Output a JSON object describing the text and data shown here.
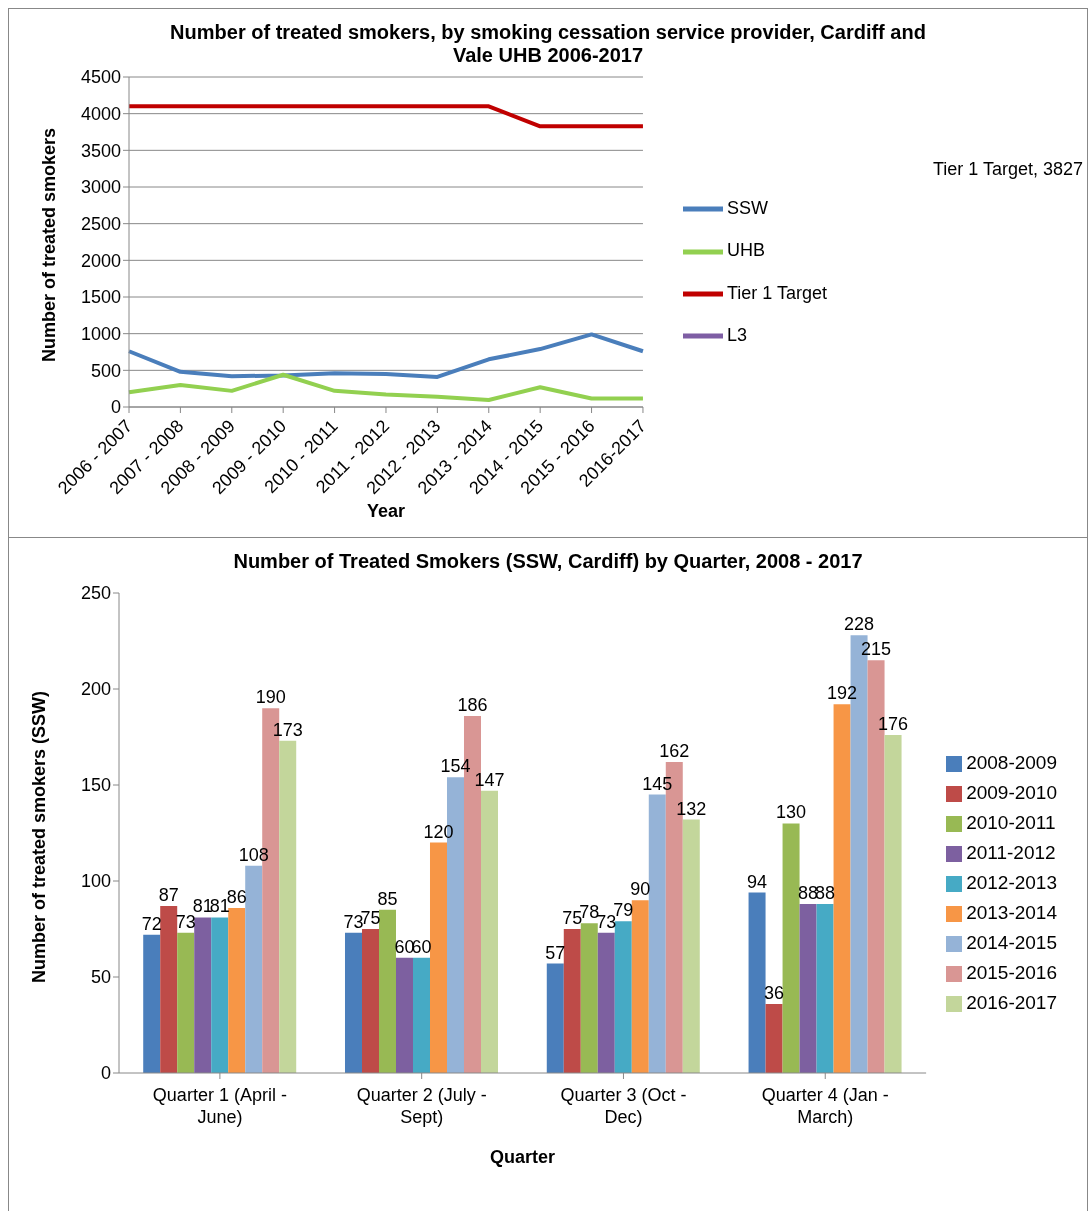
{
  "chart_data": [
    {
      "type": "line",
      "title": "Number of treated smokers,  by smoking cessation service provider, Cardiff and Vale UHB 2006-2017",
      "xlabel": "Year",
      "ylabel": "Number of treated smokers",
      "categories": [
        "2006 - 2007",
        "2007 - 2008",
        "2008 - 2009",
        "2009 - 2010",
        "2010 - 2011",
        "2011 - 2012",
        "2012 - 2013",
        "2013 - 2014",
        "2014 - 2015",
        "2015 - 2016",
        "2016-2017"
      ],
      "series": [
        {
          "name": "SSW",
          "color": "#4a7ebb",
          "values": [
            760,
            480,
            420,
            430,
            460,
            450,
            410,
            650,
            790,
            990,
            760
          ]
        },
        {
          "name": "UHB",
          "color": "#92d050",
          "values": [
            200,
            300,
            220,
            440,
            220,
            170,
            140,
            95,
            270,
            115,
            115
          ]
        },
        {
          "name": "Tier 1 Target",
          "color": "#c00000",
          "values": [
            4100,
            4100,
            4100,
            4100,
            4100,
            4100,
            4100,
            4100,
            3827,
            3827,
            3827
          ]
        },
        {
          "name": "L3",
          "color": "#7e5ea4",
          "values": [
            null,
            null,
            null,
            null,
            null,
            null,
            null,
            null,
            null,
            null,
            null
          ]
        }
      ],
      "annotations": [
        "Tier 1 Target, 3827"
      ],
      "ylim": [
        0,
        4500
      ],
      "yticks": [
        0,
        500,
        1000,
        1500,
        2000,
        2500,
        3000,
        3500,
        4000,
        4500
      ],
      "grid": "y",
      "legend": "right",
      "marker": "none",
      "line_style": "solid"
    },
    {
      "type": "bar",
      "title": "Number of Treated Smokers (SSW, Cardiff) by Quarter, 2008 - 2017",
      "xlabel": "Quarter",
      "ylabel": "Number of treated smokers (SSW)",
      "categories": [
        "Quarter 1 (April - June)",
        "Quarter 2 (July - Sept)",
        "Quarter 3 (Oct - Dec)",
        "Quarter 4 (Jan - March)"
      ],
      "series": [
        {
          "name": "2008-2009",
          "color": "#4a7ebb",
          "values": [
            72,
            73,
            57,
            94
          ]
        },
        {
          "name": "2009-2010",
          "color": "#be4b48",
          "values": [
            87,
            75,
            75,
            36
          ]
        },
        {
          "name": "2010-2011",
          "color": "#98b954",
          "values": [
            73,
            85,
            78,
            130
          ]
        },
        {
          "name": "2011-2012",
          "color": "#7d60a0",
          "values": [
            81,
            60,
            73,
            88
          ]
        },
        {
          "name": "2012-2013",
          "color": "#46aac5",
          "values": [
            81,
            60,
            79,
            88
          ]
        },
        {
          "name": "2013-2014",
          "color": "#f79646",
          "values": [
            86,
            120,
            90,
            192
          ]
        },
        {
          "name": "2014-2015",
          "color": "#95b3d7",
          "values": [
            108,
            154,
            145,
            228
          ]
        },
        {
          "name": "2015-2016",
          "color": "#d99694",
          "values": [
            190,
            186,
            162,
            215
          ]
        },
        {
          "name": "2016-2017",
          "color": "#c3d69b",
          "values": [
            173,
            147,
            132,
            176
          ]
        }
      ],
      "ylim": [
        0,
        250
      ],
      "yticks": [
        0,
        50,
        100,
        150,
        200,
        250
      ],
      "data_labels": true,
      "legend": "right"
    }
  ]
}
